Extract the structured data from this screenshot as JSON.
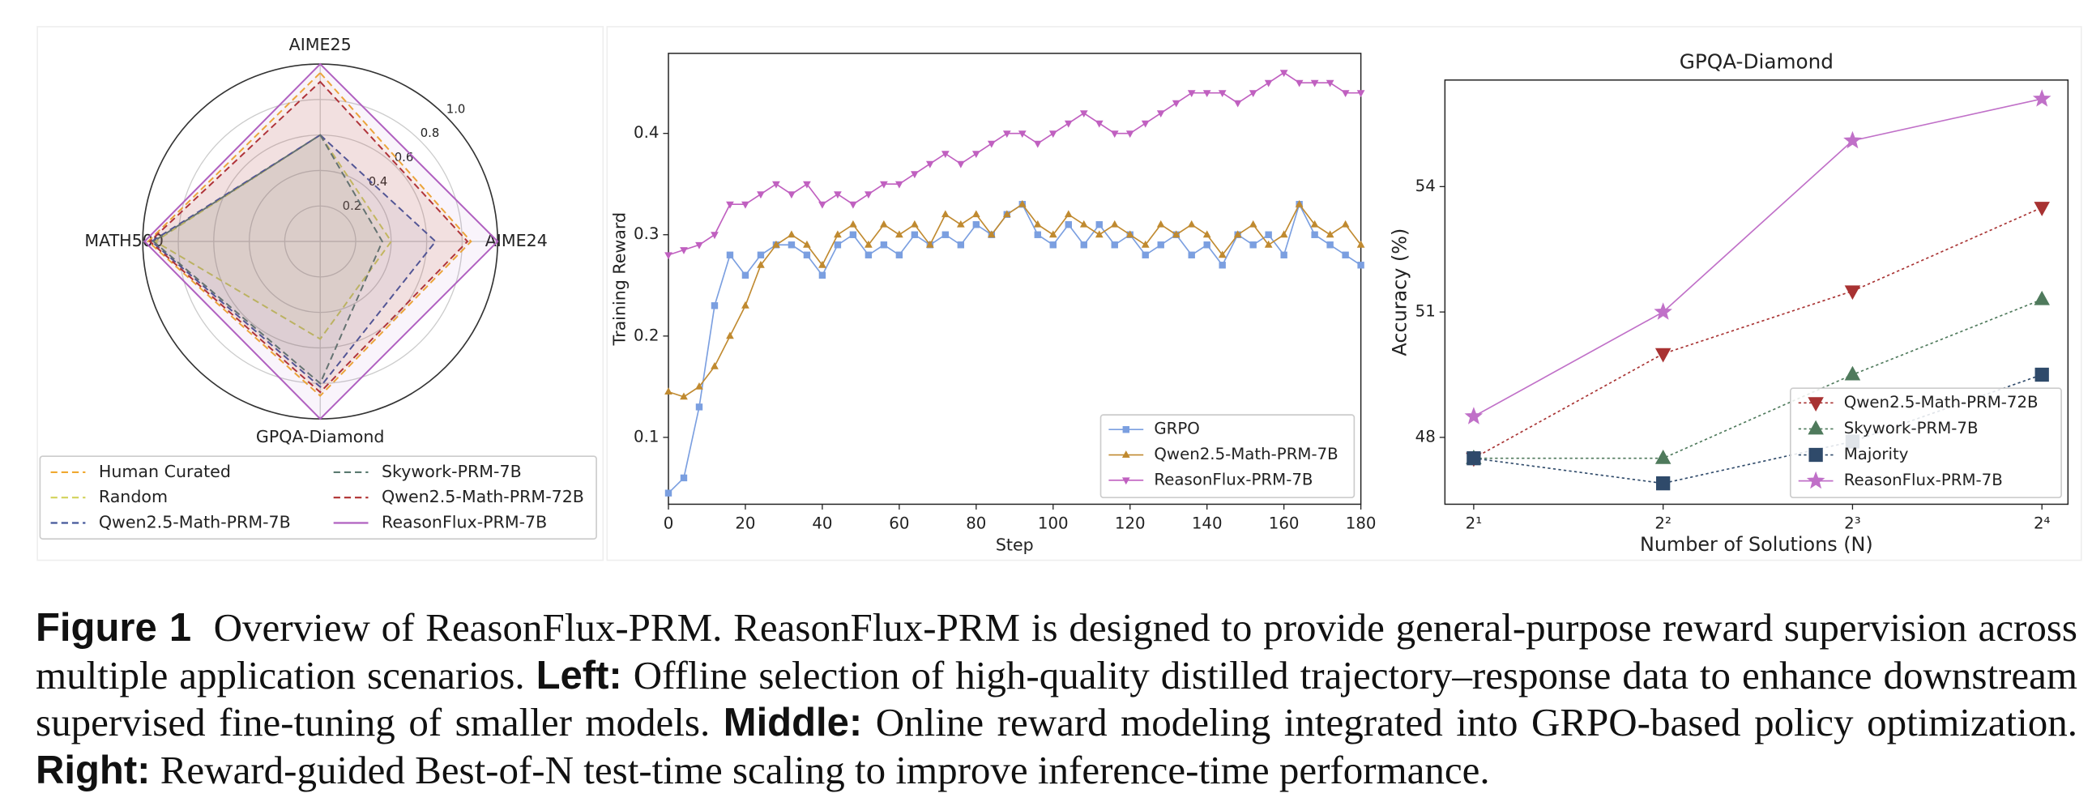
{
  "chart_data": [
    {
      "type": "radar",
      "axes": [
        "AIME25",
        "AIME24",
        "GPQA-Diamond",
        "MATH500"
      ],
      "rlim": [
        0,
        1.0
      ],
      "rticks": [
        0.2,
        0.4,
        0.6,
        0.8,
        {
          "value": 1.0,
          "label": "1.0"
        }
      ],
      "grid": true,
      "legend": "lower center",
      "series": [
        {
          "name": "Human Curated",
          "color": "#f0a830",
          "linestyle": "dashed",
          "values": [
            0.95,
            0.85,
            0.87,
            0.97
          ]
        },
        {
          "name": "Random",
          "color": "#d2d25a",
          "linestyle": "dashed",
          "values": [
            0.6,
            0.4,
            0.55,
            0.93
          ]
        },
        {
          "name": "Qwen2.5-Math-PRM-7B",
          "color": "#45589a",
          "linestyle": "dashed",
          "values": [
            0.6,
            0.65,
            0.82,
            0.95
          ]
        },
        {
          "name": "Skywork-PRM-7B",
          "color": "#5a7a70",
          "linestyle": "dashed",
          "values": [
            0.6,
            0.35,
            0.8,
            0.94
          ]
        },
        {
          "name": "Qwen2.5-Math-PRM-72B",
          "color": "#b03030",
          "linestyle": "dashed",
          "values": [
            0.9,
            0.83,
            0.85,
            0.96
          ]
        },
        {
          "name": "ReasonFlux-PRM-7B",
          "color": "#b060c0",
          "linestyle": "solid",
          "values": [
            1.0,
            1.0,
            1.0,
            0.99
          ]
        }
      ]
    },
    {
      "type": "line",
      "xlabel": "Step",
      "ylabel": "Training Reward",
      "x": [
        0,
        4,
        8,
        12,
        16,
        20,
        24,
        28,
        32,
        36,
        40,
        44,
        48,
        52,
        56,
        60,
        64,
        68,
        72,
        76,
        80,
        84,
        88,
        92,
        96,
        100,
        104,
        108,
        112,
        116,
        120,
        124,
        128,
        132,
        136,
        140,
        144,
        148,
        152,
        156,
        160,
        164,
        168,
        172,
        176,
        180
      ],
      "xlim": [
        0,
        180
      ],
      "xticks": [
        0,
        20,
        40,
        60,
        80,
        100,
        120,
        140,
        160,
        180
      ],
      "ylim": [
        0.034,
        0.479
      ],
      "yticks": [
        0.1,
        0.2,
        0.3,
        0.4
      ],
      "legend": "lower right",
      "series": [
        {
          "name": "GRPO",
          "color": "#7b9fe0",
          "marker": "square",
          "linestyle": "solid",
          "values": [
            0.045,
            0.06,
            0.13,
            0.23,
            0.28,
            0.26,
            0.28,
            0.29,
            0.29,
            0.28,
            0.26,
            0.29,
            0.3,
            0.28,
            0.29,
            0.28,
            0.3,
            0.29,
            0.3,
            0.29,
            0.31,
            0.3,
            0.32,
            0.33,
            0.3,
            0.29,
            0.31,
            0.29,
            0.31,
            0.29,
            0.3,
            0.28,
            0.29,
            0.3,
            0.28,
            0.29,
            0.27,
            0.3,
            0.29,
            0.3,
            0.28,
            0.33,
            0.3,
            0.29,
            0.28,
            0.27
          ]
        },
        {
          "name": "Qwen2.5-Math-PRM-7B",
          "color": "#c08a30",
          "marker": "triangle-up",
          "linestyle": "solid",
          "values": [
            0.145,
            0.14,
            0.15,
            0.17,
            0.2,
            0.23,
            0.27,
            0.29,
            0.3,
            0.29,
            0.27,
            0.3,
            0.31,
            0.29,
            0.31,
            0.3,
            0.31,
            0.29,
            0.32,
            0.31,
            0.32,
            0.3,
            0.32,
            0.33,
            0.31,
            0.3,
            0.32,
            0.31,
            0.3,
            0.31,
            0.3,
            0.29,
            0.31,
            0.3,
            0.31,
            0.3,
            0.28,
            0.3,
            0.31,
            0.29,
            0.3,
            0.33,
            0.31,
            0.3,
            0.31,
            0.29
          ]
        },
        {
          "name": "ReasonFlux-PRM-7B",
          "color": "#c060c0",
          "marker": "triangle-down",
          "linestyle": "solid",
          "values": [
            0.28,
            0.285,
            0.29,
            0.3,
            0.33,
            0.33,
            0.34,
            0.35,
            0.34,
            0.35,
            0.33,
            0.34,
            0.33,
            0.34,
            0.35,
            0.35,
            0.36,
            0.37,
            0.38,
            0.37,
            0.38,
            0.39,
            0.4,
            0.4,
            0.39,
            0.4,
            0.41,
            0.42,
            0.41,
            0.4,
            0.4,
            0.41,
            0.42,
            0.43,
            0.44,
            0.44,
            0.44,
            0.43,
            0.44,
            0.45,
            0.46,
            0.45,
            0.45,
            0.45,
            0.44,
            0.44
          ]
        }
      ]
    },
    {
      "type": "line",
      "title": "GPQA-Diamond",
      "xlabel": "Number of Solutions (N)",
      "ylabel": "Accuracy (%)",
      "x": [
        2,
        4,
        8,
        16
      ],
      "xscale": "log2",
      "xlim": [
        1.8,
        17.6
      ],
      "xticks": [
        {
          "value": 2,
          "label": "2¹"
        },
        {
          "value": 4,
          "label": "2²"
        },
        {
          "value": 8,
          "label": "2³"
        },
        {
          "value": 16,
          "label": "2⁴"
        }
      ],
      "ylim": [
        46.4,
        56.55
      ],
      "yticks": [
        48,
        51,
        54
      ],
      "legend": "lower right",
      "series": [
        {
          "name": "Qwen2.5-Math-PRM-72B",
          "color": "#a83232",
          "marker": "triangle-down",
          "linestyle": "dotted",
          "values": [
            47.5,
            50.0,
            51.5,
            53.5
          ]
        },
        {
          "name": "Skywork-PRM-7B",
          "color": "#4f7a5c",
          "marker": "triangle-up",
          "linestyle": "dotted",
          "values": [
            47.5,
            47.5,
            49.5,
            51.3
          ]
        },
        {
          "name": "Majority",
          "color": "#2f4a6a",
          "marker": "square",
          "linestyle": "dotted",
          "values": [
            47.5,
            46.9,
            47.9,
            49.5
          ]
        },
        {
          "name": "ReasonFlux-PRM-7B",
          "color": "#c070c8",
          "marker": "star",
          "linestyle": "solid",
          "values": [
            48.5,
            51.0,
            55.1,
            56.1
          ]
        }
      ]
    }
  ],
  "caption": {
    "label": "Figure 1",
    "intro": "Overview of ReasonFlux-PRM. ReasonFlux-PRM is designed to provide general-purpose reward supervision across multiple application scenarios.",
    "left_label": "Left:",
    "left": "Offline selection of high-quality distilled trajectory–response data to enhance downstream supervised fine-tuning of smaller models.",
    "middle_label": "Middle:",
    "middle": "Online reward modeling integrated into GRPO-based policy optimization.",
    "right_label": "Right:",
    "right": "Reward-guided Best-of-N test-time scaling to improve inference-time performance."
  }
}
